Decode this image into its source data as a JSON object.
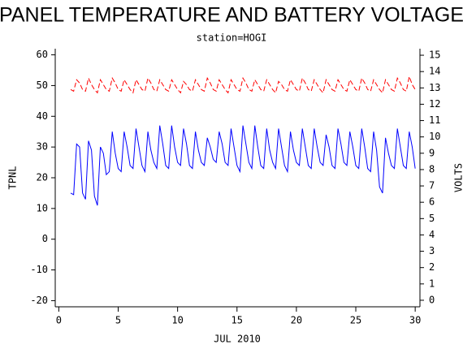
{
  "chart_data": {
    "type": "line",
    "title": "PANEL TEMPERATURE AND BATTERY VOLTAGE",
    "subtitle": "station=HOGI",
    "x_label": "JUL 2010",
    "x": [
      1,
      1.25,
      1.5,
      1.75,
      2,
      2.25,
      2.5,
      2.75,
      3,
      3.25,
      3.5,
      3.75,
      4,
      4.25,
      4.5,
      4.75,
      5,
      5.25,
      5.5,
      5.75,
      6,
      6.25,
      6.5,
      6.75,
      7,
      7.25,
      7.5,
      7.75,
      8,
      8.25,
      8.5,
      8.75,
      9,
      9.25,
      9.5,
      9.75,
      10,
      10.25,
      10.5,
      10.75,
      11,
      11.25,
      11.5,
      11.75,
      12,
      12.25,
      12.5,
      12.75,
      13,
      13.25,
      13.5,
      13.75,
      14,
      14.25,
      14.5,
      14.75,
      15,
      15.25,
      15.5,
      15.75,
      16,
      16.25,
      16.5,
      16.75,
      17,
      17.25,
      17.5,
      17.75,
      18,
      18.25,
      18.5,
      18.75,
      19,
      19.25,
      19.5,
      19.75,
      20,
      20.25,
      20.5,
      20.75,
      21,
      21.25,
      21.5,
      21.75,
      22,
      22.25,
      22.5,
      22.75,
      23,
      23.25,
      23.5,
      23.75,
      24,
      24.25,
      24.5,
      24.75,
      25,
      25.25,
      25.5,
      25.75,
      26,
      26.25,
      26.5,
      26.75,
      27,
      27.25,
      27.5,
      27.75,
      28,
      28.25,
      28.5,
      28.75,
      29,
      29.25,
      29.5,
      29.75,
      30
    ],
    "series": [
      {
        "name": "TPNL",
        "color": "#0000ff",
        "axis": "y",
        "values": [
          15,
          14.5,
          31,
          30,
          15,
          13,
          32,
          29,
          14,
          11,
          30,
          28,
          21,
          22,
          35,
          28,
          23,
          22,
          35,
          30,
          24,
          23,
          36,
          30,
          24,
          22,
          35,
          29,
          25,
          23,
          37,
          31,
          24,
          23,
          37,
          30,
          25,
          24,
          36,
          31,
          24,
          23,
          35,
          29,
          25,
          24,
          33,
          30,
          26,
          25,
          35,
          31,
          25,
          24,
          36,
          30,
          24,
          22,
          37,
          31,
          25,
          23,
          37,
          30,
          24,
          23,
          36,
          29,
          25,
          23,
          36,
          30,
          24,
          22,
          35,
          29,
          25,
          24,
          36,
          30,
          24,
          23,
          36,
          30,
          25,
          24,
          34,
          30,
          24,
          23,
          36,
          31,
          25,
          24,
          35,
          30,
          24,
          23,
          36,
          30,
          23,
          22,
          35,
          29,
          17,
          15,
          33,
          28,
          24,
          23,
          36,
          30,
          24,
          23,
          35,
          30,
          23
        ]
      },
      {
        "name": "VOLTS",
        "color": "#ff0000",
        "axis": "y2",
        "dashed": true,
        "values": [
          12.9,
          12.8,
          13.5,
          13.3,
          12.9,
          12.8,
          13.6,
          13.2,
          12.9,
          12.7,
          13.5,
          13.2,
          12.9,
          12.8,
          13.6,
          13.3,
          12.9,
          12.8,
          13.5,
          13.2,
          12.9,
          12.7,
          13.5,
          13.2,
          12.9,
          12.8,
          13.6,
          13.3,
          12.9,
          12.8,
          13.5,
          13.2,
          12.9,
          12.8,
          13.5,
          13.2,
          12.9,
          12.7,
          13.4,
          13.2,
          12.9,
          12.8,
          13.5,
          13.2,
          12.9,
          12.8,
          13.6,
          13.3,
          12.9,
          12.8,
          13.5,
          13.2,
          12.9,
          12.7,
          13.5,
          13.2,
          12.9,
          12.8,
          13.6,
          13.3,
          12.9,
          12.8,
          13.5,
          13.2,
          12.9,
          12.8,
          13.5,
          13.2,
          12.9,
          12.7,
          13.4,
          13.2,
          12.9,
          12.8,
          13.5,
          13.2,
          12.9,
          12.8,
          13.6,
          13.3,
          12.9,
          12.8,
          13.5,
          13.2,
          12.9,
          12.7,
          13.5,
          13.2,
          12.9,
          12.8,
          13.5,
          13.2,
          12.9,
          12.8,
          13.5,
          13.2,
          12.9,
          12.8,
          13.6,
          13.3,
          12.9,
          12.8,
          13.5,
          13.2,
          12.9,
          12.7,
          13.5,
          13.2,
          12.9,
          12.8,
          13.6,
          13.3,
          12.9,
          12.8,
          13.7,
          13.2,
          12.9
        ]
      }
    ],
    "xlim": [
      -0.3,
      30.4
    ],
    "xticks": [
      0,
      5,
      10,
      15,
      20,
      25,
      30
    ],
    "ylim": [
      -22,
      62
    ],
    "yticks": [
      -20,
      -10,
      0,
      10,
      20,
      30,
      40,
      50,
      60
    ],
    "y2lim": [
      -0.4,
      15.4
    ],
    "y2ticks": [
      0,
      1,
      2,
      3,
      4,
      5,
      6,
      7,
      8,
      9,
      10,
      11,
      12,
      13,
      14,
      15
    ]
  }
}
